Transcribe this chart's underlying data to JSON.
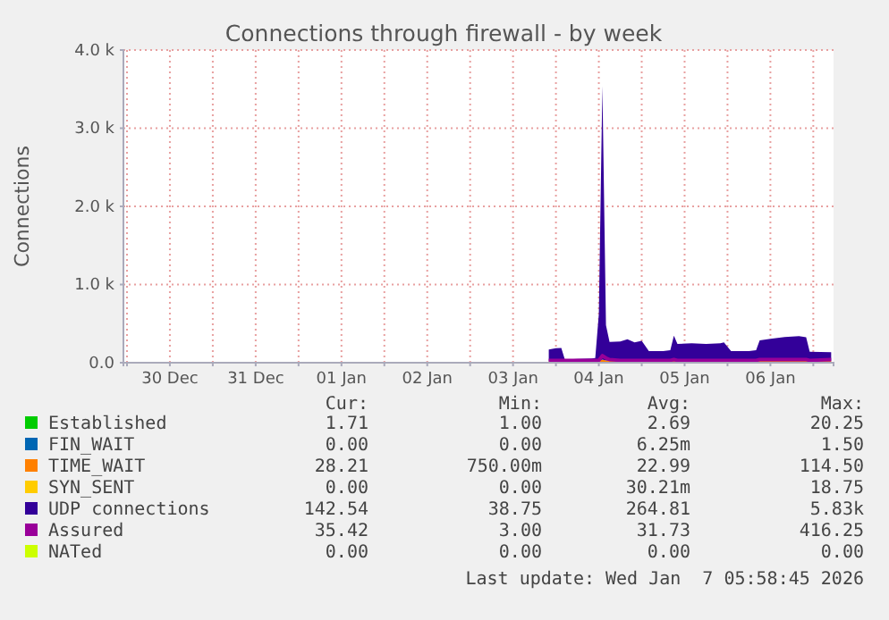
{
  "chart_data": {
    "type": "area",
    "title": "Connections through firewall - by week",
    "ylabel": "Connections",
    "stacked": true,
    "grid": true,
    "legend": "bottom",
    "x": [
      "2026-01-03T22:00",
      "2026-01-04T00:00",
      "2026-01-04T01:30",
      "2026-01-04T02:30",
      "2026-01-04T06:00",
      "2026-01-04T10:00",
      "2026-01-04T11:00",
      "2026-01-04T12:00",
      "2026-01-04T13:00",
      "2026-01-04T14:00",
      "2026-01-04T15:00",
      "2026-01-04T18:00",
      "2026-01-04T20:00",
      "2026-01-04T22:00",
      "2026-01-05T00:00",
      "2026-01-05T02:00",
      "2026-01-05T06:00",
      "2026-01-05T08:00",
      "2026-01-05T09:00",
      "2026-01-05T10:00",
      "2026-01-05T14:00",
      "2026-01-05T18:00",
      "2026-01-05T22:00",
      "2026-01-05T23:00",
      "2026-01-06T01:00",
      "2026-01-06T06:00",
      "2026-01-06T08:00",
      "2026-01-06T09:00",
      "2026-01-06T12:00",
      "2026-01-06T16:00",
      "2026-01-06T20:00",
      "2026-01-06T22:00",
      "2026-01-06T23:00",
      "2026-01-07T05:00"
    ],
    "series": [
      {
        "name": "Established",
        "color": "#00cc00",
        "values": [
          null,
          null,
          null,
          null,
          null,
          null,
          null,
          null,
          null,
          null,
          null,
          null,
          null,
          null,
          null,
          null,
          null,
          null,
          null,
          null,
          null,
          null,
          null,
          null,
          null,
          null,
          null,
          null,
          null,
          null,
          null,
          null,
          null,
          null
        ]
      },
      {
        "name": "FIN_WAIT",
        "color": "#0066b3",
        "values": [
          null,
          null,
          null,
          null,
          null,
          null,
          null,
          null,
          null,
          null,
          null,
          null,
          null,
          null,
          null,
          null,
          null,
          null,
          null,
          null,
          null,
          null,
          null,
          null,
          null,
          null,
          null,
          null,
          null,
          null,
          null,
          null,
          null,
          null
        ]
      },
      {
        "name": "TIME_WAIT",
        "color": "#ff8000",
        "values": [
          20,
          20,
          20,
          20,
          20,
          20,
          20,
          20,
          40,
          30,
          25,
          20,
          20,
          20,
          20,
          20,
          20,
          20,
          25,
          20,
          20,
          20,
          20,
          20,
          20,
          20,
          20,
          25,
          25,
          30,
          30,
          25,
          20,
          25
        ]
      },
      {
        "name": "SYN_SENT",
        "color": "#ffcc00",
        "values": [
          null,
          null,
          null,
          null,
          null,
          null,
          null,
          null,
          null,
          null,
          null,
          null,
          null,
          null,
          null,
          null,
          null,
          null,
          null,
          null,
          null,
          null,
          null,
          null,
          null,
          null,
          null,
          null,
          null,
          null,
          null,
          null,
          null,
          null
        ]
      },
      {
        "name": "UDP connections",
        "color": "#330099",
        "values": [
          150,
          165,
          170,
          20,
          30,
          35,
          40,
          600,
          3500,
          450,
          240,
          250,
          280,
          240,
          260,
          130,
          130,
          140,
          320,
          220,
          230,
          220,
          230,
          240,
          130,
          130,
          140,
          260,
          280,
          300,
          310,
          300,
          120,
          110
        ]
      },
      {
        "name": "Assured",
        "type": "line",
        "color": "#990099",
        "values": [
          30,
          30,
          30,
          30,
          30,
          30,
          30,
          30,
          90,
          60,
          40,
          30,
          30,
          30,
          30,
          30,
          30,
          30,
          40,
          30,
          30,
          30,
          30,
          30,
          30,
          30,
          30,
          40,
          40,
          40,
          40,
          40,
          30,
          40
        ]
      },
      {
        "name": "NATed",
        "color": "#ccff00",
        "values": [
          null,
          null,
          null,
          null,
          null,
          null,
          null,
          null,
          null,
          null,
          null,
          null,
          null,
          null,
          null,
          null,
          null,
          null,
          null,
          null,
          null,
          null,
          null,
          null,
          null,
          null,
          null,
          null,
          null,
          null,
          null,
          null,
          null,
          null
        ]
      }
    ],
    "xlim": [
      "2025-12-29T23:00",
      "2026-01-07T05:40"
    ],
    "xticks": [
      {
        "value": "2025-12-30T00:00",
        "label": null
      },
      {
        "value": "2025-12-30T12:00",
        "label": "30 Dec"
      },
      {
        "value": "2025-12-31T00:00",
        "label": null
      },
      {
        "value": "2025-12-31T12:00",
        "label": "31 Dec"
      },
      {
        "value": "2026-01-01T00:00",
        "label": null
      },
      {
        "value": "2026-01-01T12:00",
        "label": "01 Jan"
      },
      {
        "value": "2026-01-02T00:00",
        "label": null
      },
      {
        "value": "2026-01-02T12:00",
        "label": "02 Jan"
      },
      {
        "value": "2026-01-03T00:00",
        "label": null
      },
      {
        "value": "2026-01-03T12:00",
        "label": "03 Jan"
      },
      {
        "value": "2026-01-04T00:00",
        "label": null
      },
      {
        "value": "2026-01-04T12:00",
        "label": "04 Jan"
      },
      {
        "value": "2026-01-05T00:00",
        "label": null
      },
      {
        "value": "2026-01-05T12:00",
        "label": "05 Jan"
      },
      {
        "value": "2026-01-06T00:00",
        "label": null
      },
      {
        "value": "2026-01-06T12:00",
        "label": "06 Jan"
      },
      {
        "value": "2026-01-07T00:00",
        "label": null
      }
    ],
    "ylim": [
      0,
      4000
    ],
    "yticks": [
      {
        "value": 0,
        "label": "0.0"
      },
      {
        "value": 1000,
        "label": "1.0 k"
      },
      {
        "value": 2000,
        "label": "2.0 k"
      },
      {
        "value": 3000,
        "label": "3.0 k"
      },
      {
        "value": 4000,
        "label": "4.0 k"
      }
    ],
    "annotations": [
      "Cur:",
      "Min:",
      "Avg:",
      "Max:",
      "1.71",
      "1.00",
      "2.69",
      "20.25",
      "0.00",
      "0.00",
      "6.25m",
      "1.50",
      "28.21",
      "750.00m",
      "22.99",
      "114.50",
      "0.00",
      "0.00",
      "30.21m",
      "18.75",
      "142.54",
      "38.75",
      "264.81",
      "5.83k",
      "35.42",
      "3.00",
      "31.73",
      "416.25",
      "0.00",
      "0.00",
      "0.00",
      "0.00",
      "Last update: Wed Jan  7 05:58:45 2026"
    ]
  }
}
